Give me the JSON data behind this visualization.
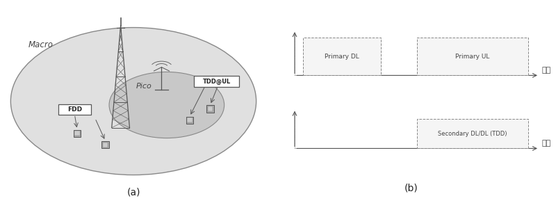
{
  "fig_width": 8.0,
  "fig_height": 3.02,
  "dpi": 100,
  "bg_color": "#ffffff",
  "label_a": "(a)",
  "label_b": "(b)",
  "macro_label": "Macro",
  "pico_label": "Pico",
  "fdd_label": "FDD",
  "tdd_label": "TDD@UL",
  "primary_dl_label": "Primary DL",
  "primary_ul_label": "Primary UL",
  "secondary_label": "Secondary DL/DL (TDD)",
  "freq_label": "频率",
  "macro_fill": "#e0e0e0",
  "pico_fill": "#c8c8c8",
  "ellipse_edge": "#888888",
  "tower_color": "#555555",
  "box_fill": "#f5f5f5",
  "box_edge": "#888888",
  "text_color": "#444444",
  "axis_color": "#555555"
}
